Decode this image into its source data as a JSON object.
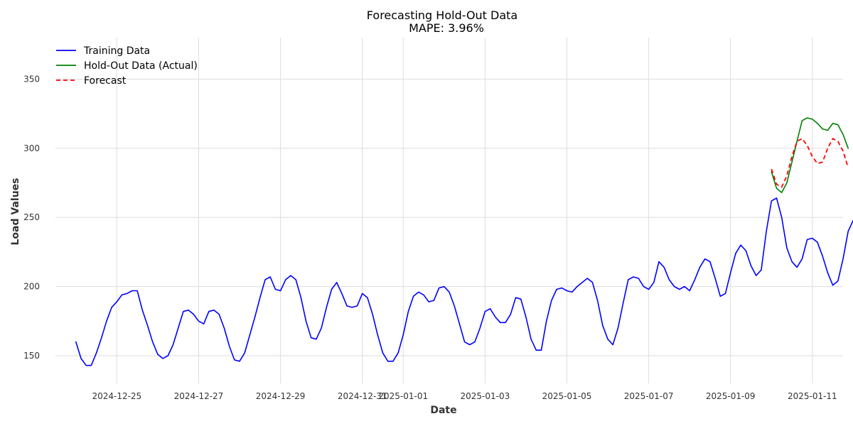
{
  "chart_data": {
    "type": "line",
    "title": "Forecasting Hold-Out Data",
    "subtitle": "MAPE: 3.96%",
    "xlabel": "Date",
    "ylabel": "Load Values",
    "xlim": [
      "2024-12-23T12:00",
      "2025-01-11T18:00"
    ],
    "ylim": [
      130,
      380
    ],
    "x_ticks": [
      "2024-12-25",
      "2024-12-27",
      "2024-12-29",
      "2024-12-31",
      "2025-01-01",
      "2025-01-03",
      "2025-01-05",
      "2025-01-07",
      "2025-01-09",
      "2025-01-11"
    ],
    "y_ticks": [
      150,
      200,
      250,
      300,
      350
    ],
    "grid": true,
    "legend_position": "top-left",
    "series": [
      {
        "name": "Training Data",
        "color": "#0000ff",
        "style": "solid",
        "x_start": "2024-12-24T00:00",
        "interval_hours": 3,
        "values": [
          160,
          148,
          143,
          143,
          152,
          163,
          175,
          185,
          189,
          194,
          195,
          197,
          197,
          183,
          172,
          160,
          151,
          148,
          150,
          158,
          170,
          182,
          183,
          180,
          175,
          173,
          182,
          183,
          180,
          170,
          157,
          147,
          146,
          152,
          165,
          178,
          192,
          205,
          207,
          198,
          197,
          205,
          208,
          205,
          192,
          175,
          163,
          162,
          170,
          185,
          198,
          203,
          195,
          186,
          185,
          186,
          195,
          192,
          180,
          165,
          152,
          146,
          146,
          152,
          165,
          182,
          193,
          196,
          194,
          189,
          190,
          199,
          200,
          196,
          186,
          173,
          160,
          158,
          160,
          170,
          182,
          184,
          178,
          174,
          174,
          180,
          192,
          191,
          178,
          162,
          154,
          154,
          175,
          190,
          198,
          199,
          197,
          196,
          200,
          203,
          206,
          203,
          190,
          172,
          162,
          158,
          170,
          188,
          205,
          207,
          206,
          200,
          198,
          203,
          218,
          214,
          205,
          200,
          198,
          200,
          197,
          205,
          214,
          220,
          218,
          206,
          193,
          195,
          210,
          224,
          230,
          226,
          215,
          208,
          212,
          240,
          262,
          264,
          250,
          228,
          218,
          214,
          220,
          234,
          235,
          232,
          222,
          210,
          201,
          204,
          220,
          240,
          248,
          233,
          218,
          208,
          203,
          204,
          213,
          210,
          205,
          195,
          180,
          168,
          165,
          168,
          174,
          184,
          198,
          202,
          201,
          193,
          192,
          192,
          197,
          203,
          202,
          193,
          178,
          162,
          152,
          147,
          146,
          150,
          165,
          185,
          200,
          210,
          218,
          228,
          240,
          280,
          320,
          324,
          314,
          302,
          302,
          308,
          322,
          342,
          366,
          368,
          350,
          330,
          314,
          299,
          300,
          318,
          328,
          329,
          327,
          330,
          328,
          325,
          326,
          324,
          325,
          335,
          336,
          349,
          348,
          332,
          300,
          287,
          295,
          316,
          332,
          334,
          320,
          304,
          296,
          294,
          300,
          318,
          345,
          356,
          352,
          345,
          318,
          296,
          284,
          292,
          318,
          324,
          325,
          315,
          300,
          290,
          282,
          277,
          282,
          296,
          315,
          330,
          335,
          331,
          327,
          329,
          332,
          330,
          318,
          306,
          292
        ]
      },
      {
        "name": "Hold-Out Data (Actual)",
        "color": "#008000",
        "style": "solid",
        "x_start": "2025-01-10T00:00",
        "interval_hours": 3,
        "values": [
          283,
          271,
          268,
          275,
          290,
          305,
          320,
          322,
          321,
          318,
          314,
          313,
          318,
          317,
          310,
          300
        ]
      },
      {
        "name": "Forecast",
        "color": "#ff0000",
        "style": "dashed",
        "x_start": "2025-01-10T00:00",
        "interval_hours": 3,
        "values": [
          285,
          274,
          272,
          280,
          294,
          305,
          307,
          302,
          294,
          289,
          290,
          300,
          307,
          305,
          298,
          286
        ]
      }
    ]
  }
}
